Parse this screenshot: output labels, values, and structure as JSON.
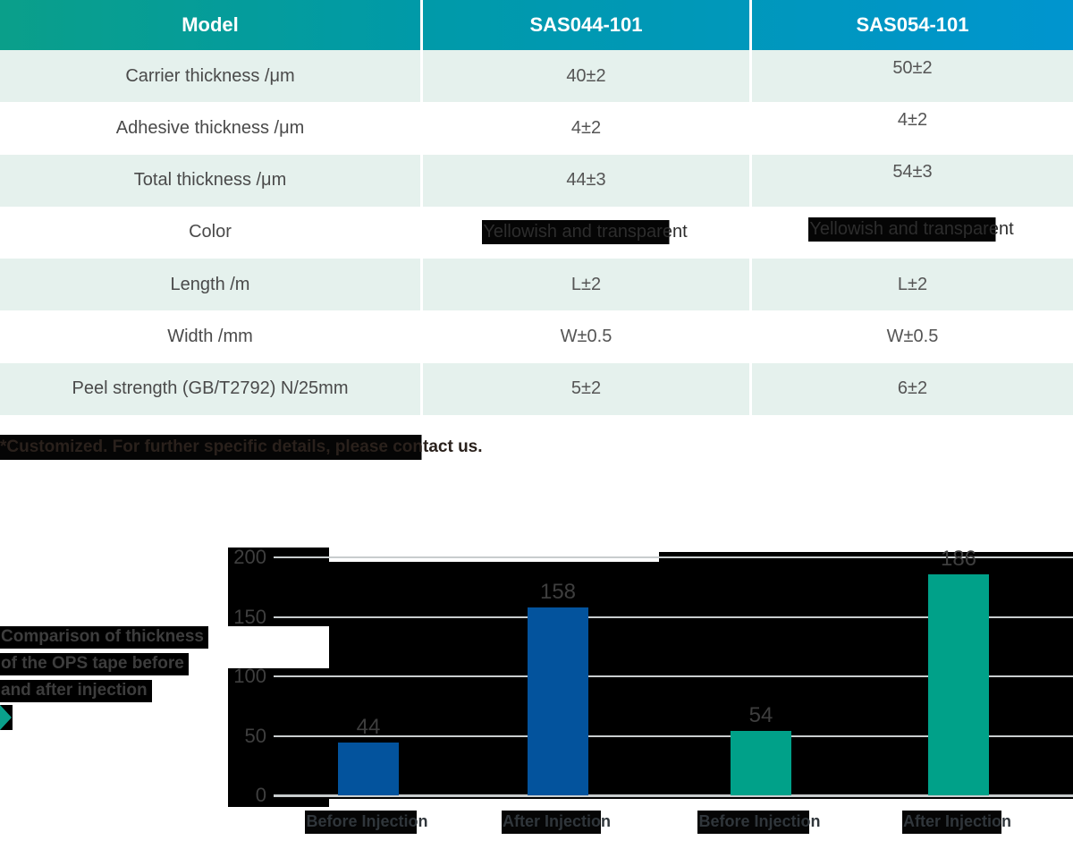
{
  "table": {
    "headers": [
      "Model",
      "SAS044-101",
      "SAS054-101"
    ],
    "rows": [
      {
        "label": "Carrier thickness /μm",
        "v1": "40±2",
        "v2": "50±2"
      },
      {
        "label": "Adhesive thickness /μm",
        "v1": "4±2",
        "v2": "4±2"
      },
      {
        "label": "Total thickness /μm",
        "v1": "44±3",
        "v2": "54±3"
      },
      {
        "label": "Color",
        "v1": "Yellowish and transparent",
        "v2": "Yellowish and transparent"
      },
      {
        "label": "Length /m",
        "v1": "L±2",
        "v2": "L±2"
      },
      {
        "label": "Width /mm",
        "v1": "W±0.5",
        "v2": "W±0.5"
      },
      {
        "label": "Peel strength (GB/T2792) N/25mm",
        "v1": "5±2",
        "v2": "6±2"
      }
    ]
  },
  "note": "*Customized. For further specific details, please contact us.",
  "chart_data": {
    "type": "bar",
    "title": "Comparison of thickness of the OPS tape before and after injection",
    "title_lines": [
      "Comparison of thickness",
      "of the OPS tape before",
      "and after injection"
    ],
    "categories": [
      "Before Injection",
      "After Injection",
      "Before Injection",
      "After Injection"
    ],
    "values": [
      44,
      158,
      54,
      186
    ],
    "bar_colors": [
      "#03539D",
      "#03539D",
      "#00A189",
      "#00A189"
    ],
    "series": [
      {
        "name": "SAS044-101",
        "color": "#03539D",
        "values": [
          44,
          158
        ]
      },
      {
        "name": "SAS054-101",
        "color": "#00A189",
        "values": [
          54,
          186
        ]
      }
    ],
    "yticks": [
      0,
      50,
      100,
      150,
      200
    ],
    "ylim": [
      0,
      200
    ],
    "xlabel": "",
    "ylabel": "",
    "grid": true,
    "legend": "none"
  },
  "colors": {
    "header_gradient_start": "#0A9F8A",
    "header_gradient_end": "#0095CF",
    "row_alt_bg": "#E5F1ED",
    "bar_blue": "#03539D",
    "bar_teal": "#00A189",
    "gridline": "#C8CDCE",
    "highlight_bg": "#000000",
    "table_text": "#4F4F4F"
  },
  "icons": {
    "play_triangle": "right-pointing teal triangle"
  }
}
